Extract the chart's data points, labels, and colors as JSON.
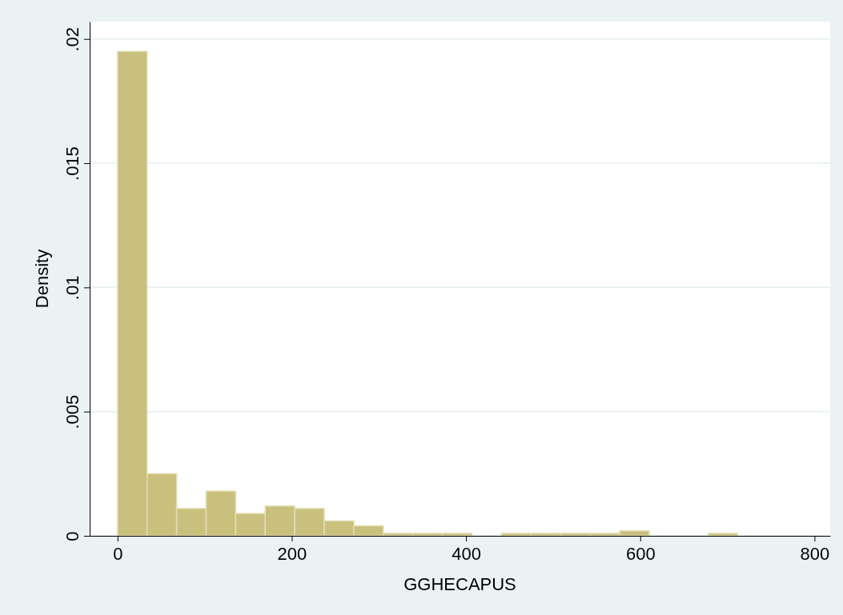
{
  "chart_data": {
    "type": "histogram",
    "xlabel": "GGHECAPUS",
    "ylabel": "Density",
    "bins": [
      0,
      33.9,
      67.8,
      101.7,
      135.6,
      169.5,
      203.4,
      237.3,
      271.2,
      305.1,
      339,
      372.9,
      406.8,
      440.7,
      474.6,
      508.5,
      542.4,
      576.3,
      610.2,
      644.1,
      678,
      711.9
    ],
    "values": [
      0.0195,
      0.0025,
      0.0011,
      0.0018,
      0.0009,
      0.0012,
      0.0011,
      0.0006,
      0.0004,
      0.0001,
      0.0001,
      0.0001,
      0,
      0.0001,
      0.0001,
      0.0001,
      0.0001,
      0.0002,
      0,
      0,
      0.0001
    ],
    "color": "#c9c07d",
    "xlim": [
      -32,
      818
    ],
    "xticks": [
      0,
      200,
      400,
      600,
      800
    ],
    "ylim": [
      0,
      0.0207
    ],
    "yticks": [
      0,
      {
        "value": 0.005,
        "label": ".005"
      },
      {
        "value": 0.01,
        "label": ".01"
      },
      {
        "value": 0.015,
        "label": ".015"
      },
      {
        "value": 0.02,
        "label": ".02"
      }
    ],
    "grid": "y"
  }
}
